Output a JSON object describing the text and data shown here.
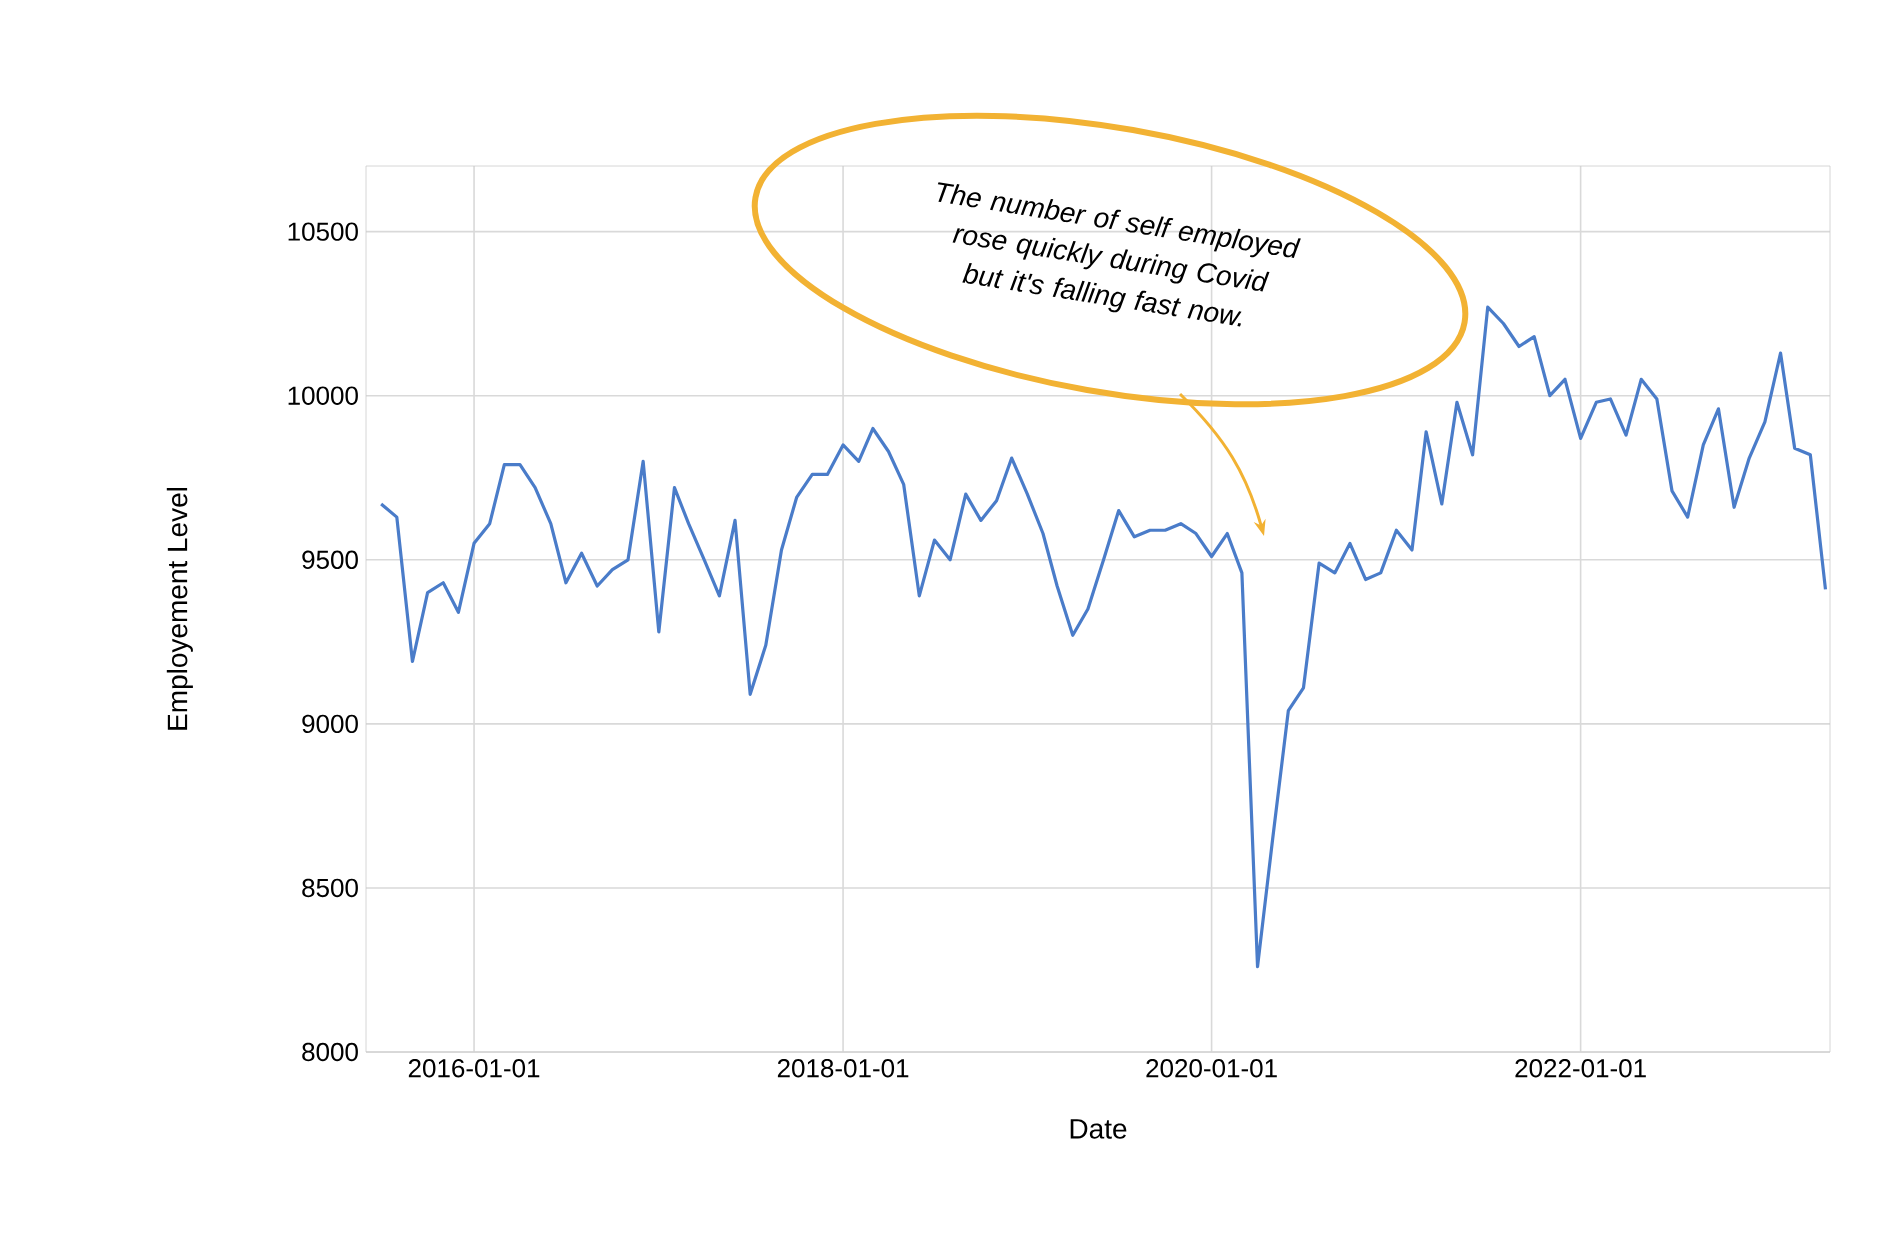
{
  "chart_data": {
    "type": "line",
    "xlabel": "Date",
    "ylabel": "Employement Level",
    "annotations": [
      "The number of self employed rose quickly during Covid but it's falling fast now."
    ],
    "x": [
      "2015-07",
      "2015-08",
      "2015-09",
      "2015-10",
      "2015-11",
      "2015-12",
      "2016-01",
      "2016-02",
      "2016-03",
      "2016-04",
      "2016-05",
      "2016-06",
      "2016-07",
      "2016-08",
      "2016-09",
      "2016-10",
      "2016-11",
      "2016-12",
      "2017-01",
      "2017-02",
      "2017-03",
      "2017-04",
      "2017-05",
      "2017-06",
      "2017-07",
      "2017-08",
      "2017-09",
      "2017-10",
      "2017-11",
      "2017-12",
      "2018-01",
      "2018-02",
      "2018-03",
      "2018-04",
      "2018-05",
      "2018-06",
      "2018-07",
      "2018-08",
      "2018-09",
      "2018-10",
      "2018-11",
      "2018-12",
      "2019-01",
      "2019-02",
      "2019-03",
      "2019-04",
      "2019-05",
      "2019-06",
      "2019-07",
      "2019-08",
      "2019-09",
      "2019-10",
      "2019-11",
      "2019-12",
      "2020-01",
      "2020-02",
      "2020-03",
      "2020-04",
      "2020-05",
      "2020-06",
      "2020-07",
      "2020-08",
      "2020-09",
      "2020-10",
      "2020-11",
      "2020-12",
      "2021-01",
      "2021-02",
      "2021-03",
      "2021-04",
      "2021-05",
      "2021-06",
      "2021-07",
      "2021-08",
      "2021-09",
      "2021-10",
      "2021-11",
      "2021-12",
      "2022-01",
      "2022-02",
      "2022-03",
      "2022-04",
      "2022-05",
      "2022-06",
      "2022-07",
      "2022-08",
      "2022-09",
      "2022-10",
      "2022-11",
      "2022-12",
      "2023-01",
      "2023-02",
      "2023-03",
      "2023-04",
      "2023-05"
    ],
    "series": [
      {
        "color": "#4a7cc9",
        "values": [
          9670,
          9630,
          9190,
          9400,
          9430,
          9340,
          9550,
          9610,
          9790,
          9790,
          9720,
          9610,
          9430,
          9520,
          9420,
          9470,
          9500,
          9800,
          9280,
          9720,
          9610,
          9500,
          9390,
          9620,
          9090,
          9240,
          9530,
          9690,
          9760,
          9760,
          9850,
          9800,
          9900,
          9830,
          9730,
          9390,
          9560,
          9500,
          9700,
          9620,
          9680,
          9810,
          9700,
          9580,
          9420,
          9270,
          9350,
          9500,
          9650,
          9570,
          9590,
          9590,
          9610,
          9580,
          9510,
          9580,
          9460,
          8260,
          8650,
          9040,
          9110,
          9490,
          9460,
          9550,
          9440,
          9460,
          9590,
          9530,
          9890,
          9670,
          9980,
          9820,
          10270,
          10220,
          10150,
          10180,
          10000,
          10050,
          9870,
          9980,
          9990,
          9880,
          10050,
          9990,
          9710,
          9630,
          9850,
          9960,
          9660,
          9810,
          9920,
          10130,
          9840,
          9820,
          9410
        ]
      }
    ],
    "xlim": [
      "2015-06-01",
      "2023-05-10"
    ],
    "xticks": [
      "2016-01-01",
      "2018-01-01",
      "2020-01-01",
      "2022-01-01"
    ],
    "ylim": [
      8000,
      10700
    ],
    "yticks": [
      8000,
      8500,
      9000,
      9500,
      10000,
      10500
    ],
    "grid": true,
    "marker": "none",
    "line_style": "solid"
  }
}
